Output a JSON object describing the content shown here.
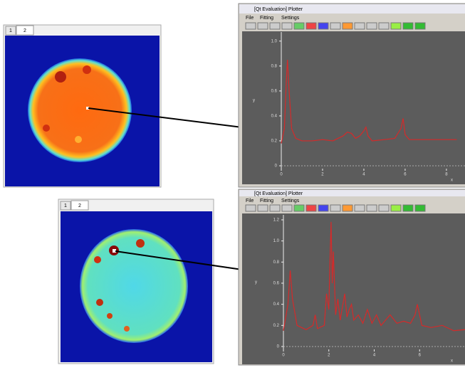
{
  "panels": [
    {
      "tabs": [
        "1",
        "2"
      ]
    },
    {
      "tabs": [
        "1",
        "2"
      ]
    }
  ],
  "windows": [
    {
      "title": "[Qt Evaluation] Plotter",
      "menu": [
        "File",
        "Fitting",
        "Settings"
      ]
    },
    {
      "title": "[Qt Evaluation] Plotter",
      "menu": [
        "File",
        "Fitting",
        "Settings"
      ]
    }
  ],
  "chart_data": [
    {
      "type": "line",
      "x_label": "x",
      "y_label": "y",
      "color": "#d42a2a",
      "x": [
        0,
        0.15,
        0.25,
        0.3,
        0.38,
        0.5,
        0.7,
        1,
        1.5,
        2,
        2.5,
        3,
        3.2,
        3.4,
        3.6,
        3.8,
        4,
        4.1,
        4.2,
        4.4,
        5,
        5.5,
        5.8,
        5.9,
        6,
        6.2,
        7,
        8,
        8.5
      ],
      "values": [
        0.18,
        0.3,
        0.7,
        0.85,
        0.6,
        0.3,
        0.22,
        0.2,
        0.2,
        0.21,
        0.2,
        0.24,
        0.27,
        0.26,
        0.22,
        0.24,
        0.28,
        0.31,
        0.24,
        0.2,
        0.21,
        0.22,
        0.3,
        0.38,
        0.25,
        0.21,
        0.21,
        0.21,
        0.21
      ],
      "xlim": [
        0,
        8.9
      ],
      "xticks": [
        0,
        2,
        4,
        6,
        8
      ],
      "ylim": [
        0,
        1.05
      ],
      "yticks": [
        0,
        0.2,
        0.4,
        0.6,
        0.8,
        {
          "value": 1,
          "label": "1.0"
        }
      ]
    },
    {
      "type": "line",
      "x_label": "x",
      "y_label": "y",
      "color": "#d42a2a",
      "x": [
        0,
        0.2,
        0.3,
        0.4,
        0.6,
        1,
        1.3,
        1.4,
        1.5,
        1.8,
        1.9,
        2.0,
        2.05,
        2.1,
        2.15,
        2.2,
        2.3,
        2.4,
        2.5,
        2.7,
        2.8,
        2.9,
        3.0,
        3.1,
        3.3,
        3.5,
        3.7,
        3.9,
        4.1,
        4.3,
        4.5,
        4.7,
        5,
        5.3,
        5.6,
        5.8,
        5.9,
        6.1,
        6.5,
        7,
        7.5,
        8
      ],
      "values": [
        0.15,
        0.4,
        0.72,
        0.45,
        0.2,
        0.16,
        0.2,
        0.3,
        0.17,
        0.2,
        0.5,
        0.35,
        0.8,
        1.18,
        0.6,
        0.9,
        0.3,
        0.45,
        0.25,
        0.5,
        0.28,
        0.35,
        0.4,
        0.25,
        0.3,
        0.22,
        0.35,
        0.22,
        0.3,
        0.2,
        0.25,
        0.3,
        0.22,
        0.24,
        0.22,
        0.3,
        0.4,
        0.2,
        0.18,
        0.2,
        0.15,
        0.16
      ],
      "xlim": [
        0,
        8
      ],
      "xticks": [
        0,
        2,
        4,
        6
      ],
      "ylim": [
        0,
        1.22
      ],
      "yticks": [
        0,
        0.2,
        0.4,
        0.6,
        0.8,
        {
          "value": 1,
          "label": "1.0"
        },
        1.2
      ]
    }
  ]
}
